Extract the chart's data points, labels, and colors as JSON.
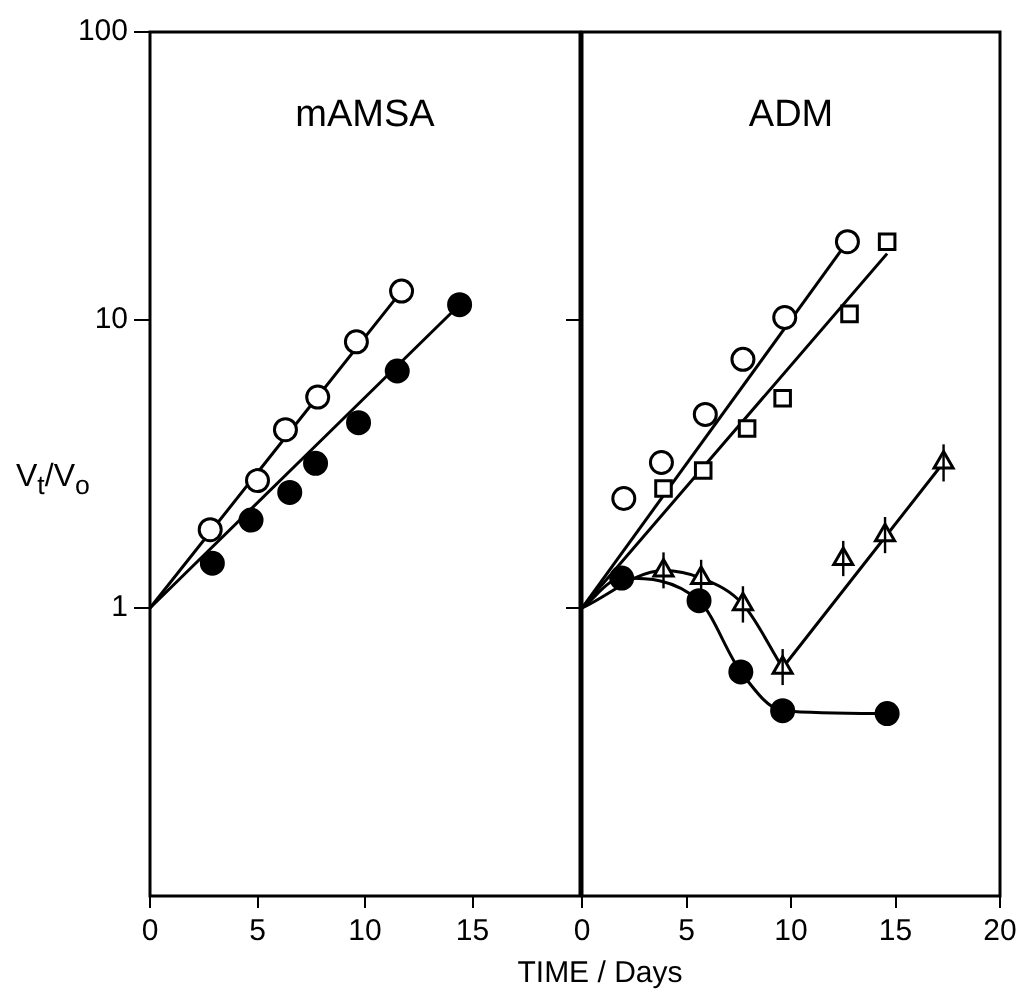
{
  "chart_data": [
    {
      "type": "scatter",
      "title": "mAMSA",
      "xlabel": "TIME / Days",
      "ylabel": "V$_{t}$/V$_{o}$",
      "xlim": [
        0,
        20
      ],
      "xticks": [
        0,
        5,
        10,
        15
      ],
      "ylim": [
        0.1,
        100
      ],
      "yticks": [
        1,
        10,
        100
      ],
      "log": "y",
      "grid": false,
      "series": [
        {
          "type": "scatter",
          "marker": "circle",
          "color": "#ffffff",
          "x": [
            2.8,
            5,
            6.3,
            7.8,
            9.6,
            11.7
          ],
          "values": [
            1.87,
            2.77,
            4.16,
            5.4,
            8.4,
            12.6
          ]
        },
        {
          "type": "scatter",
          "marker": "circle",
          "color": "#000000",
          "x": [
            2.9,
            4.7,
            6.5,
            7.7,
            9.7,
            11.5,
            14.4
          ],
          "values": [
            1.43,
            2.02,
            2.52,
            3.18,
            4.4,
            6.65,
            11.3
          ]
        },
        {
          "type": "line",
          "marker": "none",
          "color": "#000000",
          "x": [
            0,
            11.7
          ],
          "values": [
            1,
            12.6
          ]
        },
        {
          "type": "line",
          "marker": "none",
          "color": "#000000",
          "x": [
            0,
            14.4
          ],
          "values": [
            1,
            11.3
          ]
        }
      ]
    },
    {
      "type": "scatter",
      "title": "ADM",
      "xlim": [
        0,
        20
      ],
      "xticks": [
        0,
        5,
        10,
        15,
        20
      ],
      "ylim": [
        0.1,
        100
      ],
      "yticks": [
        1,
        10,
        100
      ],
      "log": "y",
      "grid": false,
      "tick_labels": "x",
      "series": [
        {
          "type": "scatter",
          "marker": "circle",
          "color": "#ffffff",
          "x": [
            2,
            3.8,
            5.9,
            7.7,
            9.7,
            12.7
          ],
          "values": [
            2.4,
            3.2,
            4.7,
            7.3,
            10.2,
            18.7
          ]
        },
        {
          "type": "scatter",
          "marker": "square",
          "color": "#ffffff",
          "x": [
            3.9,
            5.8,
            7.9,
            9.6,
            12.8,
            14.6
          ],
          "values": [
            2.6,
            3.0,
            4.2,
            5.35,
            10.5,
            18.7
          ]
        },
        {
          "type": "scatter",
          "marker": "circle",
          "color": "#000000",
          "x": [
            1.9,
            5.6,
            7.6,
            9.6,
            14.6
          ],
          "values": [
            1.27,
            1.06,
            0.6,
            0.44,
            0.43
          ]
        },
        {
          "type": "scatter",
          "marker": "triangle",
          "color": "#ffffff",
          "x": [
            3.9,
            5.7,
            7.7,
            9.6,
            12.5,
            14.5,
            17.3
          ],
          "values": [
            1.35,
            1.27,
            1.03,
            0.62,
            1.48,
            1.79,
            3.2
          ],
          "errors": [
            [
              1.17,
              1.56
            ],
            [
              1.1,
              1.47
            ],
            [
              0.89,
              1.19
            ],
            [
              0.54,
              0.72
            ],
            [
              1.29,
              1.71
            ],
            [
              1.55,
              2.07
            ],
            [
              2.75,
              3.7
            ]
          ]
        },
        {
          "type": "line",
          "marker": "none",
          "color": "#000000",
          "x": [
            0,
            12.7
          ],
          "values": [
            1,
            18.7
          ]
        },
        {
          "type": "line",
          "marker": "none",
          "color": "#000000",
          "x": [
            0,
            14.6
          ],
          "values": [
            1,
            17
          ]
        },
        {
          "type": "line",
          "marker": "none",
          "color": "#000000",
          "x": [
            0,
            1.9,
            5.6,
            7.6,
            9.6,
            14.6
          ],
          "values": [
            1,
            1.27,
            1.06,
            0.6,
            0.44,
            0.43
          ]
        },
        {
          "type": "line",
          "marker": "none",
          "color": "#000000",
          "x": [
            0,
            3.9,
            5.7,
            7.7,
            9.6
          ],
          "values": [
            1,
            1.35,
            1.27,
            1.03,
            0.62
          ]
        },
        {
          "type": "line",
          "marker": "none",
          "color": "#000000",
          "x": [
            9.6,
            17.3
          ],
          "values": [
            0.62,
            3.2
          ]
        }
      ]
    }
  ]
}
